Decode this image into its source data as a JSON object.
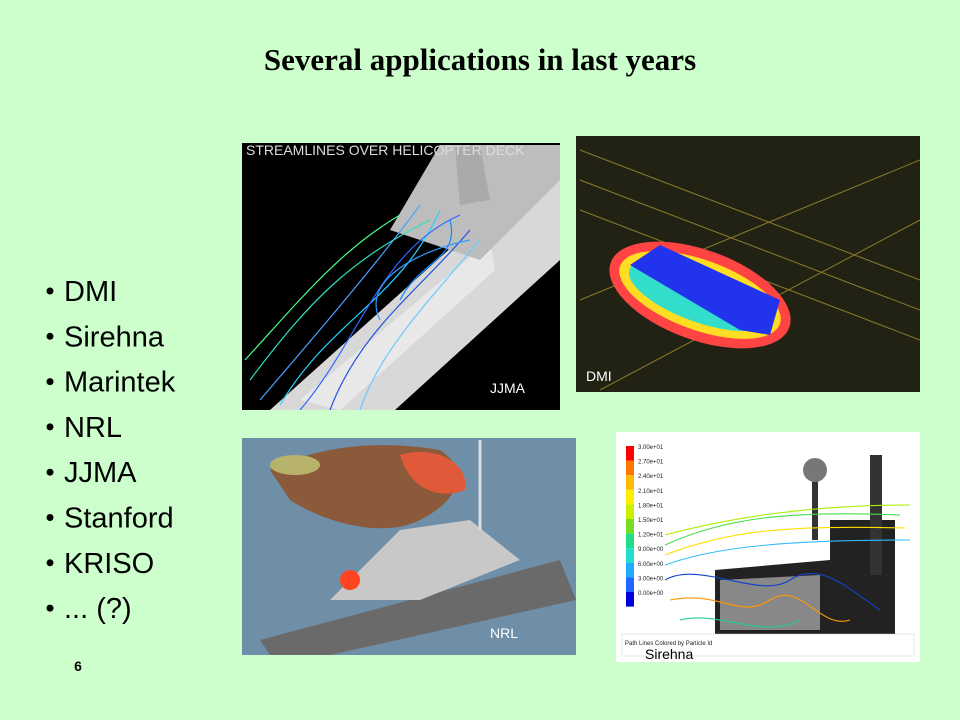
{
  "header": {
    "title": "Several applications in last years"
  },
  "bullets": [
    "DMI",
    "Sirehna",
    "Marintek",
    "NRL",
    "JJMA",
    "Stanford",
    "KRISO",
    "... (?)"
  ],
  "images": [
    {
      "caption": "JJMA",
      "inner_text": "STREAMLINES OVER HELICOPTER DECK"
    },
    {
      "caption": "DMI"
    },
    {
      "caption": "NRL"
    },
    {
      "caption": "Sirehna",
      "legend_title": "Path Lines Colored by Particle Id",
      "legend": [
        "3.00e+01",
        "2.70e+01",
        "2.40e+01",
        "2.10e+01",
        "1.80e+01",
        "1.50e+01",
        "1.20e+01",
        "9.00e+00",
        "6.00e+00",
        "3.00e+00",
        "0.00e+00"
      ]
    }
  ],
  "page_number": "6"
}
